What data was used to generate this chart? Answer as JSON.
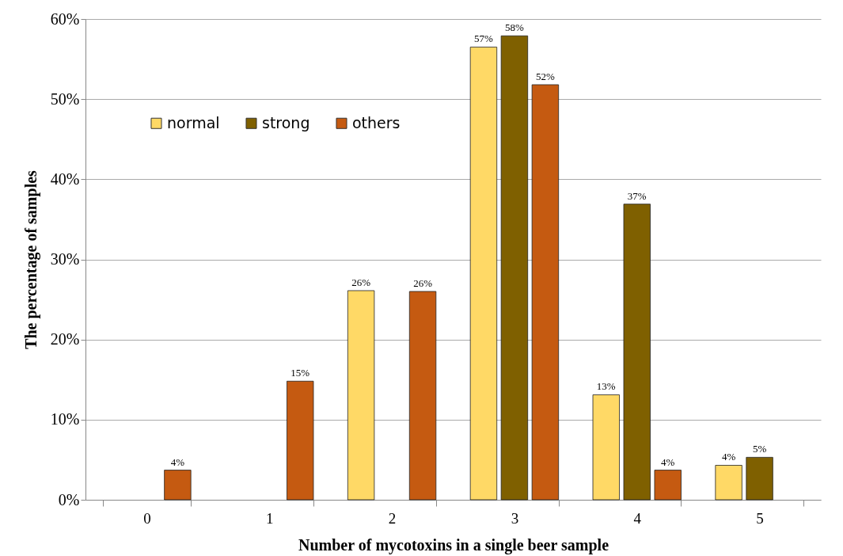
{
  "chart_data": {
    "type": "bar",
    "xlabel": "Number of mycotoxins in a single beer sample",
    "ylabel": "The percentage of samples",
    "categories": [
      "0",
      "1",
      "2",
      "3",
      "4",
      "5"
    ],
    "series": [
      {
        "name": "normal",
        "color": "#ffd966",
        "values": [
          null,
          null,
          26.1,
          56.5,
          13.1,
          4.3
        ],
        "value_labels": [
          null,
          null,
          "26%",
          "57%",
          "13%",
          "4%"
        ]
      },
      {
        "name": "strong",
        "color": "#7f6000",
        "values": [
          null,
          null,
          null,
          57.9,
          36.9,
          5.3
        ],
        "value_labels": [
          null,
          null,
          null,
          "58%",
          "37%",
          "5%"
        ]
      },
      {
        "name": "others",
        "color": "#c55a11",
        "values": [
          3.7,
          14.8,
          26.0,
          51.8,
          3.7,
          null
        ],
        "value_labels": [
          "4%",
          "15%",
          "26%",
          "52%",
          "4%",
          null
        ]
      }
    ],
    "ylim": [
      0,
      60
    ],
    "yticks": [
      {
        "value": 0,
        "label": "0%"
      },
      {
        "value": 10,
        "label": "10%"
      },
      {
        "value": 20,
        "label": "20%"
      },
      {
        "value": 30,
        "label": "30%"
      },
      {
        "value": 40,
        "label": "40%"
      },
      {
        "value": 50,
        "label": "50%"
      },
      {
        "value": 60,
        "label": "60%"
      }
    ],
    "grid": "y",
    "legend": "top left"
  }
}
